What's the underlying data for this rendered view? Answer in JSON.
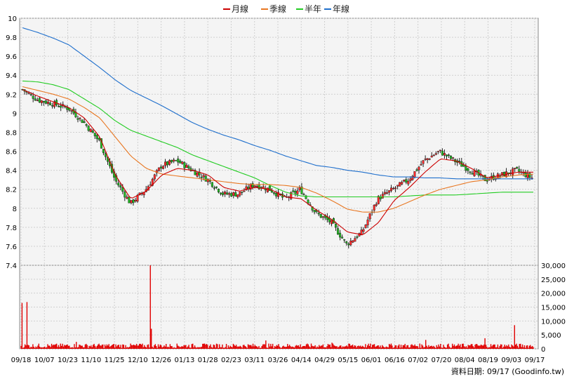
{
  "chart_data": {
    "type": "candlestick+volume",
    "legend": [
      {
        "name": "月線",
        "color": "#cc0000"
      },
      {
        "name": "季線",
        "color": "#e87722"
      },
      {
        "name": "半年",
        "color": "#22cc22"
      },
      {
        "name": "年線",
        "color": "#1f6fcc"
      }
    ],
    "price_axis": {
      "min": 7.4,
      "max": 10.0,
      "ticks": [
        10,
        9.8,
        9.6,
        9.4,
        9.2,
        9,
        8.8,
        8.6,
        8.4,
        8.2,
        8,
        7.8,
        7.6,
        7.4
      ]
    },
    "volume_axis": {
      "min": 0,
      "max": 30000,
      "ticks": [
        30000,
        25000,
        20000,
        15000,
        10000,
        5000,
        0
      ],
      "tick_labels": [
        "30,000",
        "25,000",
        "20,000",
        "15,000",
        "10,000",
        "5,000",
        "0"
      ]
    },
    "date_labels": [
      "09/18",
      "10/07",
      "10/23",
      "11/10",
      "11/25",
      "12/10",
      "12/26",
      "01/13",
      "01/28",
      "02/23",
      "03/11",
      "03/26",
      "04/14",
      "04/29",
      "05/15",
      "06/01",
      "06/16",
      "07/02",
      "07/20",
      "08/04",
      "08/19",
      "09/03",
      "09/17"
    ],
    "close_anchors": [
      9.25,
      9.14,
      9.1,
      9.05,
      8.9,
      8.7,
      8.3,
      8.05,
      8.2,
      8.45,
      8.5,
      8.4,
      8.3,
      8.15,
      8.15,
      8.25,
      8.2,
      8.1,
      8.2,
      7.95,
      7.85,
      7.62,
      7.75,
      8.1,
      8.2,
      8.3,
      8.5,
      8.6,
      8.5,
      8.4,
      8.3,
      8.35,
      8.4,
      8.32
    ],
    "ma_month": [
      9.25,
      9.18,
      9.12,
      9.06,
      8.95,
      8.75,
      8.35,
      8.1,
      8.18,
      8.35,
      8.42,
      8.4,
      8.35,
      8.22,
      8.18,
      8.22,
      8.2,
      8.12,
      8.1,
      7.98,
      7.88,
      7.75,
      7.72,
      7.85,
      8.08,
      8.22,
      8.38,
      8.52,
      8.5,
      8.42,
      8.32,
      8.35,
      8.38,
      8.38
    ],
    "ma_quarter": [
      9.28,
      9.24,
      9.2,
      9.15,
      9.06,
      8.95,
      8.75,
      8.55,
      8.42,
      8.36,
      8.34,
      8.32,
      8.3,
      8.28,
      8.26,
      8.25,
      8.25,
      8.24,
      8.22,
      8.16,
      8.08,
      7.99,
      7.96,
      7.96,
      8.0,
      8.07,
      8.14,
      8.2,
      8.24,
      8.28,
      8.3,
      8.33,
      8.35,
      8.36
    ],
    "ma_half": [
      9.34,
      9.33,
      9.3,
      9.25,
      9.15,
      9.05,
      8.92,
      8.82,
      8.76,
      8.7,
      8.64,
      8.56,
      8.5,
      8.44,
      8.38,
      8.32,
      8.24,
      8.17,
      8.13,
      8.12,
      8.12,
      8.12,
      8.12,
      8.12,
      8.12,
      8.13,
      8.14,
      8.14,
      8.14,
      8.15,
      8.16,
      8.17,
      8.17,
      8.17
    ],
    "ma_year": [
      9.9,
      9.85,
      9.79,
      9.72,
      9.6,
      9.48,
      9.35,
      9.24,
      9.16,
      9.08,
      8.99,
      8.9,
      8.83,
      8.77,
      8.72,
      8.66,
      8.61,
      8.55,
      8.5,
      8.45,
      8.43,
      8.4,
      8.38,
      8.35,
      8.33,
      8.33,
      8.32,
      8.32,
      8.31,
      8.31,
      8.31,
      8.31,
      8.31,
      8.31
    ],
    "volume_spikes": [
      {
        "index": 1,
        "value": 16500
      },
      {
        "index": 6,
        "value": 16800
      },
      {
        "index": 56,
        "value": 2500
      },
      {
        "index": 120,
        "value": 1800
      },
      {
        "index": 131,
        "value": 30000
      },
      {
        "index": 132,
        "value": 7200
      },
      {
        "index": 248,
        "value": 3000
      },
      {
        "index": 315,
        "value": 2200
      },
      {
        "index": 410,
        "value": 3200
      },
      {
        "index": 470,
        "value": 3800
      },
      {
        "index": 500,
        "value": 8500
      }
    ]
  },
  "credit": "資料日期: 09/17  (Goodinfo.tw)"
}
